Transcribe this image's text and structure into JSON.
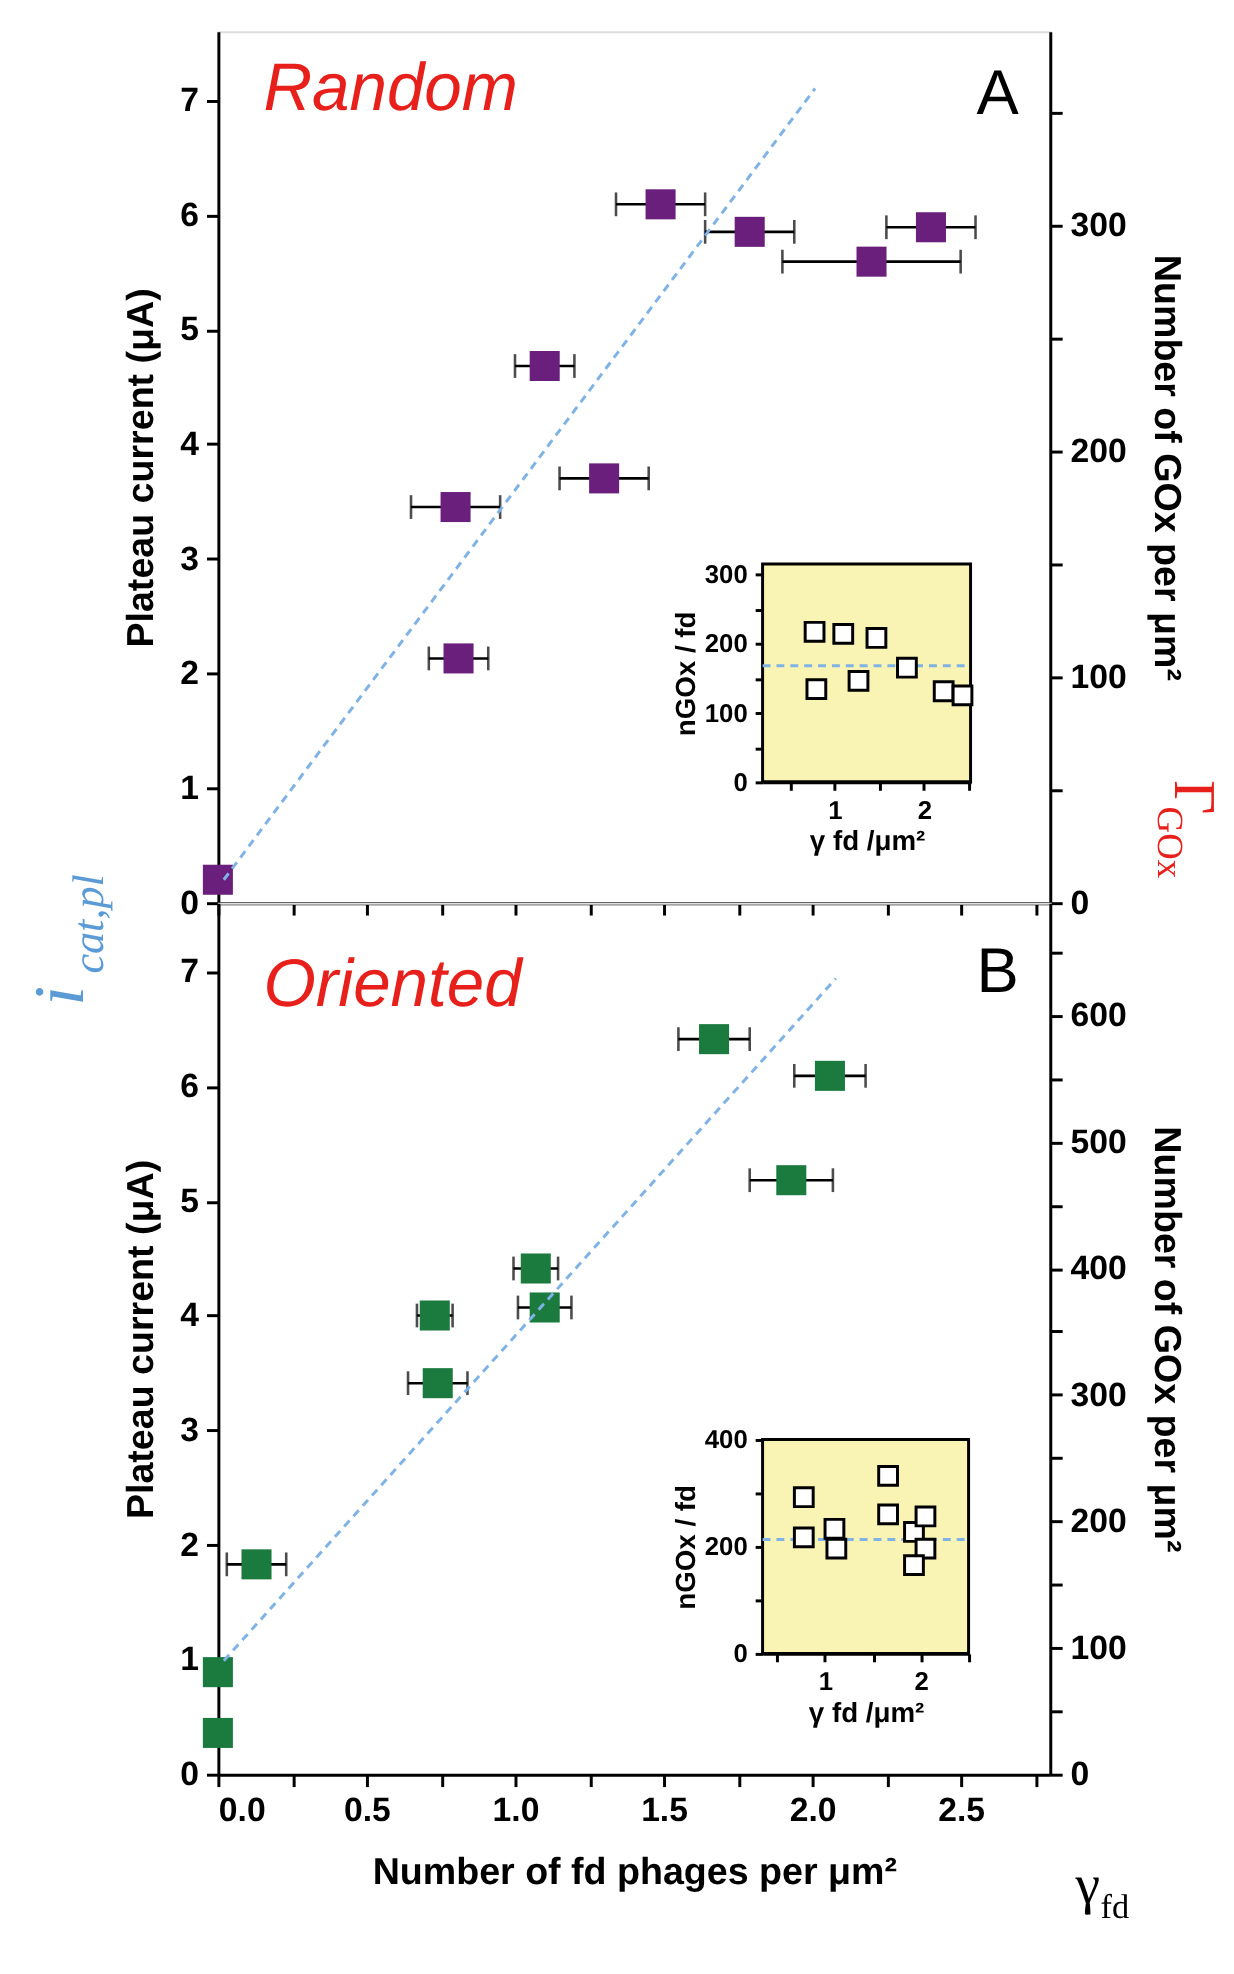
{
  "chart_data": [
    {
      "type": "scatter",
      "annotations": [
        "Random",
        "A",
        "i$_{cat,pl}$",
        "Γ$_{GOx}$"
      ],
      "ylabel": "Plateau current (μA)",
      "y2label": "Number of GOx per μm²",
      "xlim": [
        0,
        2.8
      ],
      "xticks": [
        0,
        0.25,
        0.5,
        0.75,
        1,
        1.25,
        1.5,
        1.75,
        2,
        2.25,
        2.5,
        2.75
      ],
      "ylim": [
        0,
        7.6
      ],
      "yticks": [
        0,
        1,
        2,
        3,
        4,
        5,
        6,
        7
      ],
      "y2lim": [
        0,
        386
      ],
      "y2ticks": [
        0,
        {
          "value": 50,
          "label": null
        },
        100,
        {
          "value": 150,
          "label": null
        },
        200,
        {
          "value": 250,
          "label": null
        },
        300,
        {
          "value": 350,
          "label": null
        }
      ],
      "tick_labels": "y",
      "marker": "square",
      "series": [
        {
          "color": "#6b1f7c",
          "x": [
            0.0,
            0.81,
            0.8,
            1.3,
            1.1,
            1.49,
            1.79,
            2.2,
            2.4
          ],
          "values": [
            0.2,
            2.13,
            3.45,
            3.7,
            4.68,
            6.09,
            5.85,
            5.59,
            5.89
          ],
          "xerrors": [
            null,
            0.1,
            0.15,
            0.15,
            0.1,
            0.15,
            0.15,
            0.3,
            0.15
          ]
        },
        {
          "type": "line",
          "color": "#7fb2e5",
          "line_style": "dashed",
          "marker": "none",
          "x": [
            0.02,
            2.01
          ],
          "values": [
            0.2,
            7.1
          ]
        }
      ]
    },
    {
      "type": "scatter",
      "annotations": [
        "Oriented",
        "B",
        "γ$_{fd}$"
      ],
      "xlabel": "Number of fd phages per μm²",
      "ylabel": "Plateau current (μA)",
      "y2label": "Number of GOx per μm²",
      "xlim": [
        0,
        2.8
      ],
      "xticks": [
        {
          "value": 0,
          "label": "0.0"
        },
        {
          "value": 0.25,
          "label": null
        },
        {
          "value": 0.5,
          "label": "0.5"
        },
        {
          "value": 0.75,
          "label": null
        },
        {
          "value": 1,
          "label": "1.0"
        },
        {
          "value": 1.25,
          "label": null
        },
        {
          "value": 1.5,
          "label": "1.5"
        },
        {
          "value": 1.75,
          "label": null
        },
        {
          "value": 2,
          "label": "2.0"
        },
        {
          "value": 2.25,
          "label": null
        },
        {
          "value": 2.5,
          "label": "2.5"
        },
        {
          "value": 2.75,
          "label": null
        }
      ],
      "ylim": [
        0,
        7.6
      ],
      "yticks": [
        0,
        1,
        2,
        3,
        4,
        5,
        6,
        7
      ],
      "y2lim": [
        0,
        689
      ],
      "y2ticks": [
        0,
        {
          "value": 50,
          "label": null
        },
        100,
        {
          "value": 150,
          "label": null
        },
        200,
        {
          "value": 250,
          "label": null
        },
        300,
        {
          "value": 350,
          "label": null
        },
        400,
        {
          "value": 450,
          "label": null
        },
        500,
        {
          "value": 550,
          "label": null
        },
        600,
        {
          "value": 650,
          "label": null
        }
      ],
      "marker": "square",
      "series": [
        {
          "color": "#1b7a3e",
          "x": [
            0.0,
            0.0,
            0.13,
            0.74,
            0.73,
            1.1,
            1.07,
            1.93,
            1.67,
            2.06
          ],
          "values": [
            0.36,
            0.89,
            1.83,
            3.41,
            4.0,
            4.07,
            4.41,
            5.18,
            6.41,
            6.09
          ],
          "xerrors": [
            null,
            null,
            0.1,
            0.1,
            0.06,
            0.09,
            0.075,
            0.14,
            0.12,
            0.12
          ]
        },
        {
          "type": "line",
          "color": "#7fb2e5",
          "line_style": "dashed",
          "marker": "none",
          "x": [
            0.02,
            2.08
          ],
          "values": [
            0.99,
            6.94
          ]
        }
      ]
    },
    {
      "type": "scatter",
      "xlabel": "γ fd /μm²",
      "ylabel": "nGOx / fd",
      "xlim": [
        0.2,
        2.52
      ],
      "xticks": [
        {
          "value": 0.5,
          "label": null
        },
        1,
        {
          "value": 1.5,
          "label": null
        },
        2,
        {
          "value": 2.5,
          "label": null
        }
      ],
      "ylim": [
        0,
        315
      ],
      "yticks": [
        0,
        {
          "value": 50,
          "label": null
        },
        100,
        {
          "value": 150,
          "label": null
        },
        200,
        {
          "value": 250,
          "label": null
        },
        300
      ],
      "marker": "square",
      "ref_lines": [
        {
          "axis": "y",
          "value": 168,
          "color": "#7fb2e5",
          "line_style": "dashed"
        }
      ],
      "series": [
        {
          "color": "#000000",
          "x": [
            0.78,
            1.1,
            1.47,
            0.8,
            1.27,
            1.81,
            2.22,
            2.43
          ],
          "values": [
            217,
            214,
            208,
            134,
            146,
            165,
            131,
            125
          ]
        }
      ]
    },
    {
      "type": "scatter",
      "xlabel": "γ fd /μm²",
      "ylabel": "nGOx / fd",
      "xlim": [
        0.35,
        2.5
      ],
      "xticks": [
        {
          "value": 0.5,
          "label": null
        },
        1,
        {
          "value": 1.5,
          "label": null
        },
        2,
        {
          "value": 2.5,
          "label": null
        }
      ],
      "ylim": [
        0,
        400
      ],
      "yticks": [
        0,
        {
          "value": 100,
          "label": null
        },
        200,
        {
          "value": 300,
          "label": null
        },
        400
      ],
      "marker": "square",
      "ref_lines": [
        {
          "axis": "y",
          "value": 213,
          "color": "#7fb2e5",
          "line_style": "dashed"
        }
      ],
      "series": [
        {
          "color": "#000000",
          "x": [
            0.78,
            0.78,
            1.1,
            1.12,
            1.66,
            1.66,
            1.93,
            2.05,
            2.05,
            1.93
          ],
          "values": [
            292,
            217,
            233,
            196,
            332,
            260,
            227,
            256,
            196,
            165
          ]
        }
      ]
    }
  ]
}
